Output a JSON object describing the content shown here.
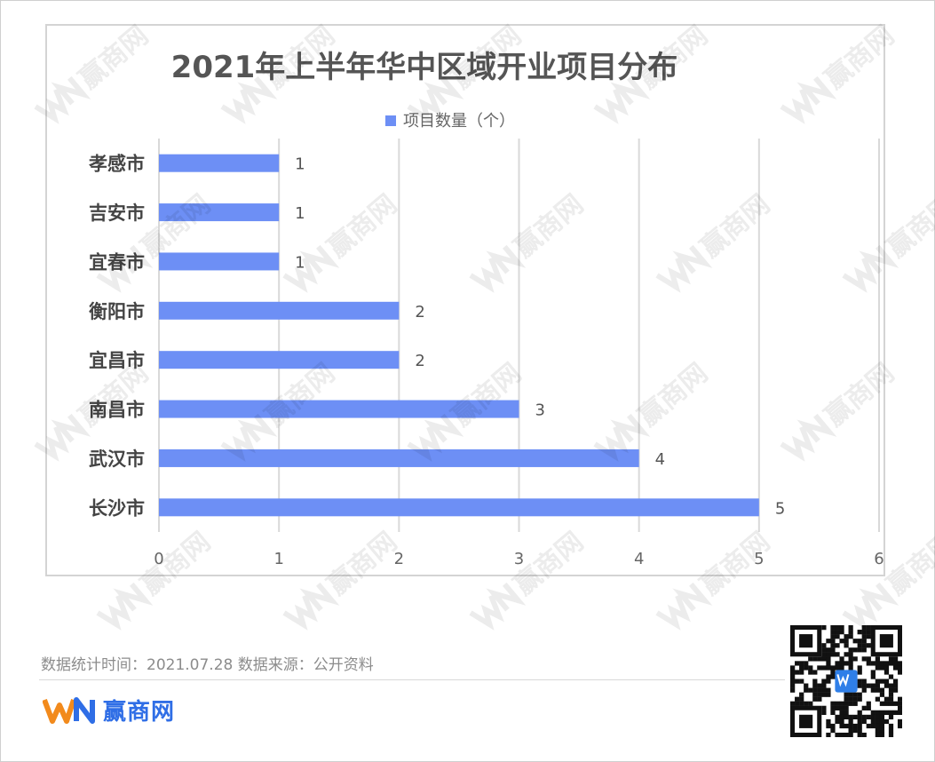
{
  "chart_data": {
    "type": "bar",
    "orientation": "horizontal",
    "title": "2021年上半年华中区域开业项目分布",
    "categories": [
      "孝感市",
      "吉安市",
      "宜春市",
      "衡阳市",
      "宜昌市",
      "南昌市",
      "武汉市",
      "长沙市"
    ],
    "series": [
      {
        "name": "项目数量（个）",
        "values": [
          1,
          1,
          1,
          2,
          2,
          3,
          4,
          5
        ]
      }
    ],
    "xlim": [
      0,
      6
    ],
    "xticks": [
      "0",
      "1",
      "2",
      "3",
      "4",
      "5",
      "6"
    ],
    "grid": true,
    "legend": "top",
    "data_labels": true,
    "bar_color": "#6d8ff5"
  },
  "footer": {
    "note": "数据统计时间：2021.07.28  数据来源：公开资料",
    "brand_name": "赢商网",
    "watermark_text": "赢商网"
  },
  "colors": {
    "bar": "#6d8ff5",
    "brand_blue": "#2f6ee6",
    "brand_orange": "#f28a1c"
  }
}
